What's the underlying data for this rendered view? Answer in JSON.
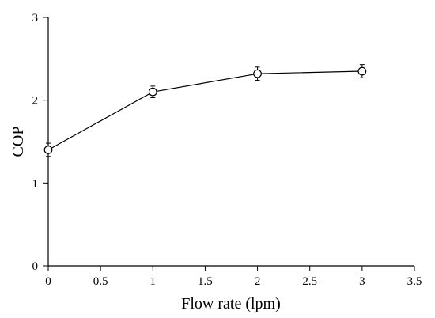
{
  "chart_data": {
    "type": "line",
    "title": "",
    "xlabel": "Flow rate (lpm)",
    "ylabel": "COP",
    "xlim": [
      0,
      3.5
    ],
    "ylim": [
      0,
      3
    ],
    "x_ticks": [
      "0",
      "0.5",
      "1",
      "1.5",
      "2",
      "2.5",
      "3",
      "3.5"
    ],
    "y_ticks": [
      "0",
      "1",
      "2",
      "3"
    ],
    "grid": false,
    "legend": "none",
    "series": [
      {
        "x": [
          0,
          1,
          2,
          3
        ],
        "y": [
          1.4,
          2.1,
          2.32,
          2.35
        ],
        "error": [
          0.08,
          0.07,
          0.08,
          0.08
        ],
        "marker": "open-circle",
        "color": "#000000"
      }
    ]
  }
}
